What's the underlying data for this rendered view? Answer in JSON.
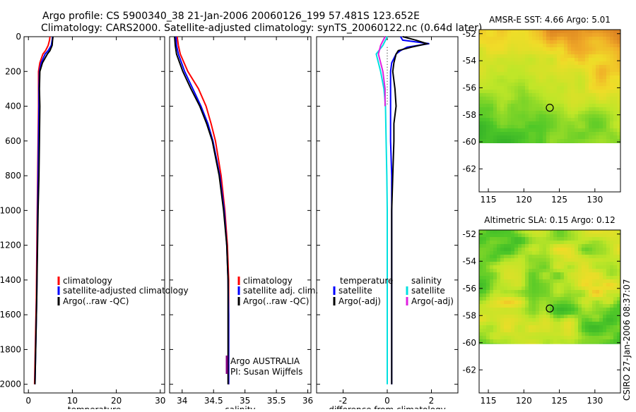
{
  "title": {
    "line1": "Argo profile: CS 5900340_38 21-Jan-2006 20060126_199 57.481S 123.652E",
    "line2": "Climatology: CARS2000. Satellite-adjusted climatology: synTS_20060122.nc (0.64d later)"
  },
  "credit": "CSIRO 27-Jan-2006 08:37:07",
  "colors": {
    "climatology": "#ff0000",
    "satellite": "#0000ff",
    "argo": "#000000",
    "satellite_salinity": "#00e0e0",
    "argo_salinity": "#e020e0"
  },
  "chart_data": [
    {
      "type": "line",
      "id": "temperature",
      "xlabel": "temperature",
      "ylabel": "",
      "xlim": [
        -1,
        31
      ],
      "ylim": [
        2050,
        0
      ],
      "y_inverted": true,
      "xticks": [
        0,
        10,
        20,
        30
      ],
      "yticks": [
        0,
        200,
        400,
        600,
        800,
        1000,
        1200,
        1400,
        1600,
        1800,
        2000
      ],
      "legend": [
        "climatology",
        "satellite-adjusted climatology",
        "Argo(..raw -QC)"
      ],
      "series": [
        {
          "name": "climatology",
          "color": "#ff0000",
          "depth": [
            0,
            20,
            50,
            80,
            100,
            150,
            200,
            300,
            400,
            600,
            800,
            1000,
            1500,
            2000
          ],
          "values": [
            4.9,
            4.8,
            4.5,
            3.9,
            3.3,
            2.6,
            2.3,
            2.3,
            2.3,
            2.2,
            2.1,
            2.0,
            1.8,
            1.4
          ]
        },
        {
          "name": "satellite-adjusted climatology",
          "color": "#0000ff",
          "depth": [
            0,
            20,
            50,
            80,
            100,
            150,
            200,
            300,
            400,
            600,
            800,
            1000,
            1500,
            2000
          ],
          "values": [
            5.5,
            5.4,
            5.2,
            4.5,
            3.8,
            2.9,
            2.5,
            2.4,
            2.4,
            2.3,
            2.2,
            2.1,
            1.9,
            1.5
          ]
        },
        {
          "name": "Argo(..raw -QC)",
          "color": "#000000",
          "depth": [
            0,
            20,
            50,
            80,
            100,
            150,
            200,
            300,
            400,
            600,
            800,
            1000,
            1500,
            2000
          ],
          "values": [
            5.6,
            5.5,
            5.4,
            4.9,
            4.3,
            3.2,
            2.6,
            2.5,
            2.6,
            2.5,
            2.4,
            2.2,
            1.9,
            1.5
          ]
        }
      ]
    },
    {
      "type": "line",
      "id": "salinity",
      "xlabel": "salinity",
      "ylabel": "",
      "xlim": [
        33.8,
        36.05
      ],
      "ylim": [
        2050,
        0
      ],
      "y_inverted": true,
      "xticks": [
        34,
        34.5,
        35,
        35.5,
        36
      ],
      "legend": [
        "climatology",
        "satellite adj. clim.",
        "Argo(..raw -QC)"
      ],
      "annotations": [
        "Argo AUSTRALIA",
        "PI: Susan Wijffels"
      ],
      "series": [
        {
          "name": "climatology",
          "color": "#ff0000",
          "depth": [
            0,
            50,
            100,
            200,
            300,
            400,
            500,
            600,
            800,
            1000,
            1200,
            1400,
            1600,
            1800,
            2000
          ],
          "values": [
            33.92,
            33.94,
            33.97,
            34.09,
            34.26,
            34.38,
            34.46,
            34.53,
            34.62,
            34.68,
            34.72,
            34.74,
            34.74,
            34.74,
            34.74
          ]
        },
        {
          "name": "satellite adj. clim.",
          "color": "#0000ff",
          "depth": [
            0,
            50,
            100,
            200,
            300,
            400,
            500,
            600,
            800,
            1000,
            1200,
            1400,
            1600,
            1800,
            2000
          ],
          "values": [
            33.9,
            33.91,
            33.94,
            34.04,
            34.17,
            34.3,
            34.41,
            34.49,
            34.6,
            34.67,
            34.71,
            34.73,
            34.74,
            34.74,
            34.74
          ]
        },
        {
          "name": "Argo(..raw -QC)",
          "color": "#000000",
          "depth": [
            0,
            50,
            100,
            200,
            300,
            400,
            500,
            600,
            800,
            1000,
            1200,
            1400,
            1600,
            1800,
            2000
          ],
          "values": [
            33.88,
            33.89,
            33.91,
            34.01,
            34.14,
            34.28,
            34.39,
            34.48,
            34.59,
            34.66,
            34.71,
            34.73,
            34.73,
            34.73,
            34.73
          ]
        }
      ]
    },
    {
      "type": "line",
      "id": "difference",
      "xlabel": "difference from climatology",
      "ylabel": "",
      "xlim": [
        -3.2,
        3.2
      ],
      "ylim": [
        2050,
        0
      ],
      "y_inverted": true,
      "xticks": [
        -2,
        0,
        2
      ],
      "legend_temperature_title": "temperature",
      "legend_salinity_title": "salinity",
      "legend": [
        "satellite",
        "Argo(-adj)",
        "satellite",
        "Argo(-adj)"
      ],
      "series": [
        {
          "name": "temperature satellite",
          "color": "#0000ff",
          "depth": [
            0,
            20,
            40,
            60,
            80,
            100,
            150,
            200,
            300,
            400,
            600,
            800,
            1000,
            1500,
            2000
          ],
          "values": [
            0.6,
            0.7,
            1.9,
            0.9,
            0.6,
            0.4,
            0.2,
            0.15,
            0.15,
            0.15,
            0.15,
            0.2,
            0.2,
            0.2,
            0.2
          ]
        },
        {
          "name": "temperature Argo(-adj)",
          "color": "#000000",
          "depth": [
            0,
            20,
            40,
            60,
            80,
            100,
            150,
            200,
            300,
            400,
            500,
            600,
            800,
            1000,
            1500,
            2000
          ],
          "values": [
            0.7,
            1.3,
            1.8,
            1.1,
            0.5,
            0.4,
            0.3,
            0.25,
            0.35,
            0.4,
            0.3,
            0.3,
            0.25,
            0.2,
            0.2,
            0.2
          ]
        },
        {
          "name": "salinity satellite",
          "color": "#00e0e0",
          "depth": [
            0,
            50,
            100,
            200,
            300,
            400,
            600,
            800,
            1000,
            1500,
            2000
          ],
          "values": [
            0.0,
            -0.2,
            -0.5,
            -0.3,
            -0.15,
            -0.08,
            -0.05,
            -0.02,
            0.0,
            0.0,
            0.0
          ]
        },
        {
          "name": "salinity Argo(-adj)",
          "color": "#e020e0",
          "depth": [
            0,
            50,
            100,
            200,
            300,
            400
          ],
          "values": [
            -0.1,
            -0.3,
            -0.4,
            -0.2,
            -0.1,
            -0.1
          ]
        }
      ]
    },
    {
      "type": "heatmap",
      "id": "sst-map",
      "title": "AMSR-E SST: 4.66 Argo: 5.01",
      "xlim": [
        113.7,
        133.6
      ],
      "ylim": [
        -63.7,
        -51.7
      ],
      "xticks": [
        115,
        120,
        125,
        130
      ],
      "yticks": [
        -52,
        -54,
        -56,
        -58,
        -60,
        -62
      ],
      "marker": {
        "lon": 123.65,
        "lat": -57.48
      },
      "data_lat_min": -60.1
    },
    {
      "type": "heatmap",
      "id": "sla-map",
      "title": "Altimetric SLA: 0.15 Argo: 0.12",
      "xlim": [
        113.7,
        133.6
      ],
      "ylim": [
        -63.7,
        -51.7
      ],
      "xticks": [
        115,
        120,
        125,
        130
      ],
      "yticks": [
        -52,
        -54,
        -56,
        -58,
        -60,
        -62
      ],
      "marker": {
        "lon": 123.65,
        "lat": -57.48
      },
      "data_lat_min": -60.1
    }
  ]
}
